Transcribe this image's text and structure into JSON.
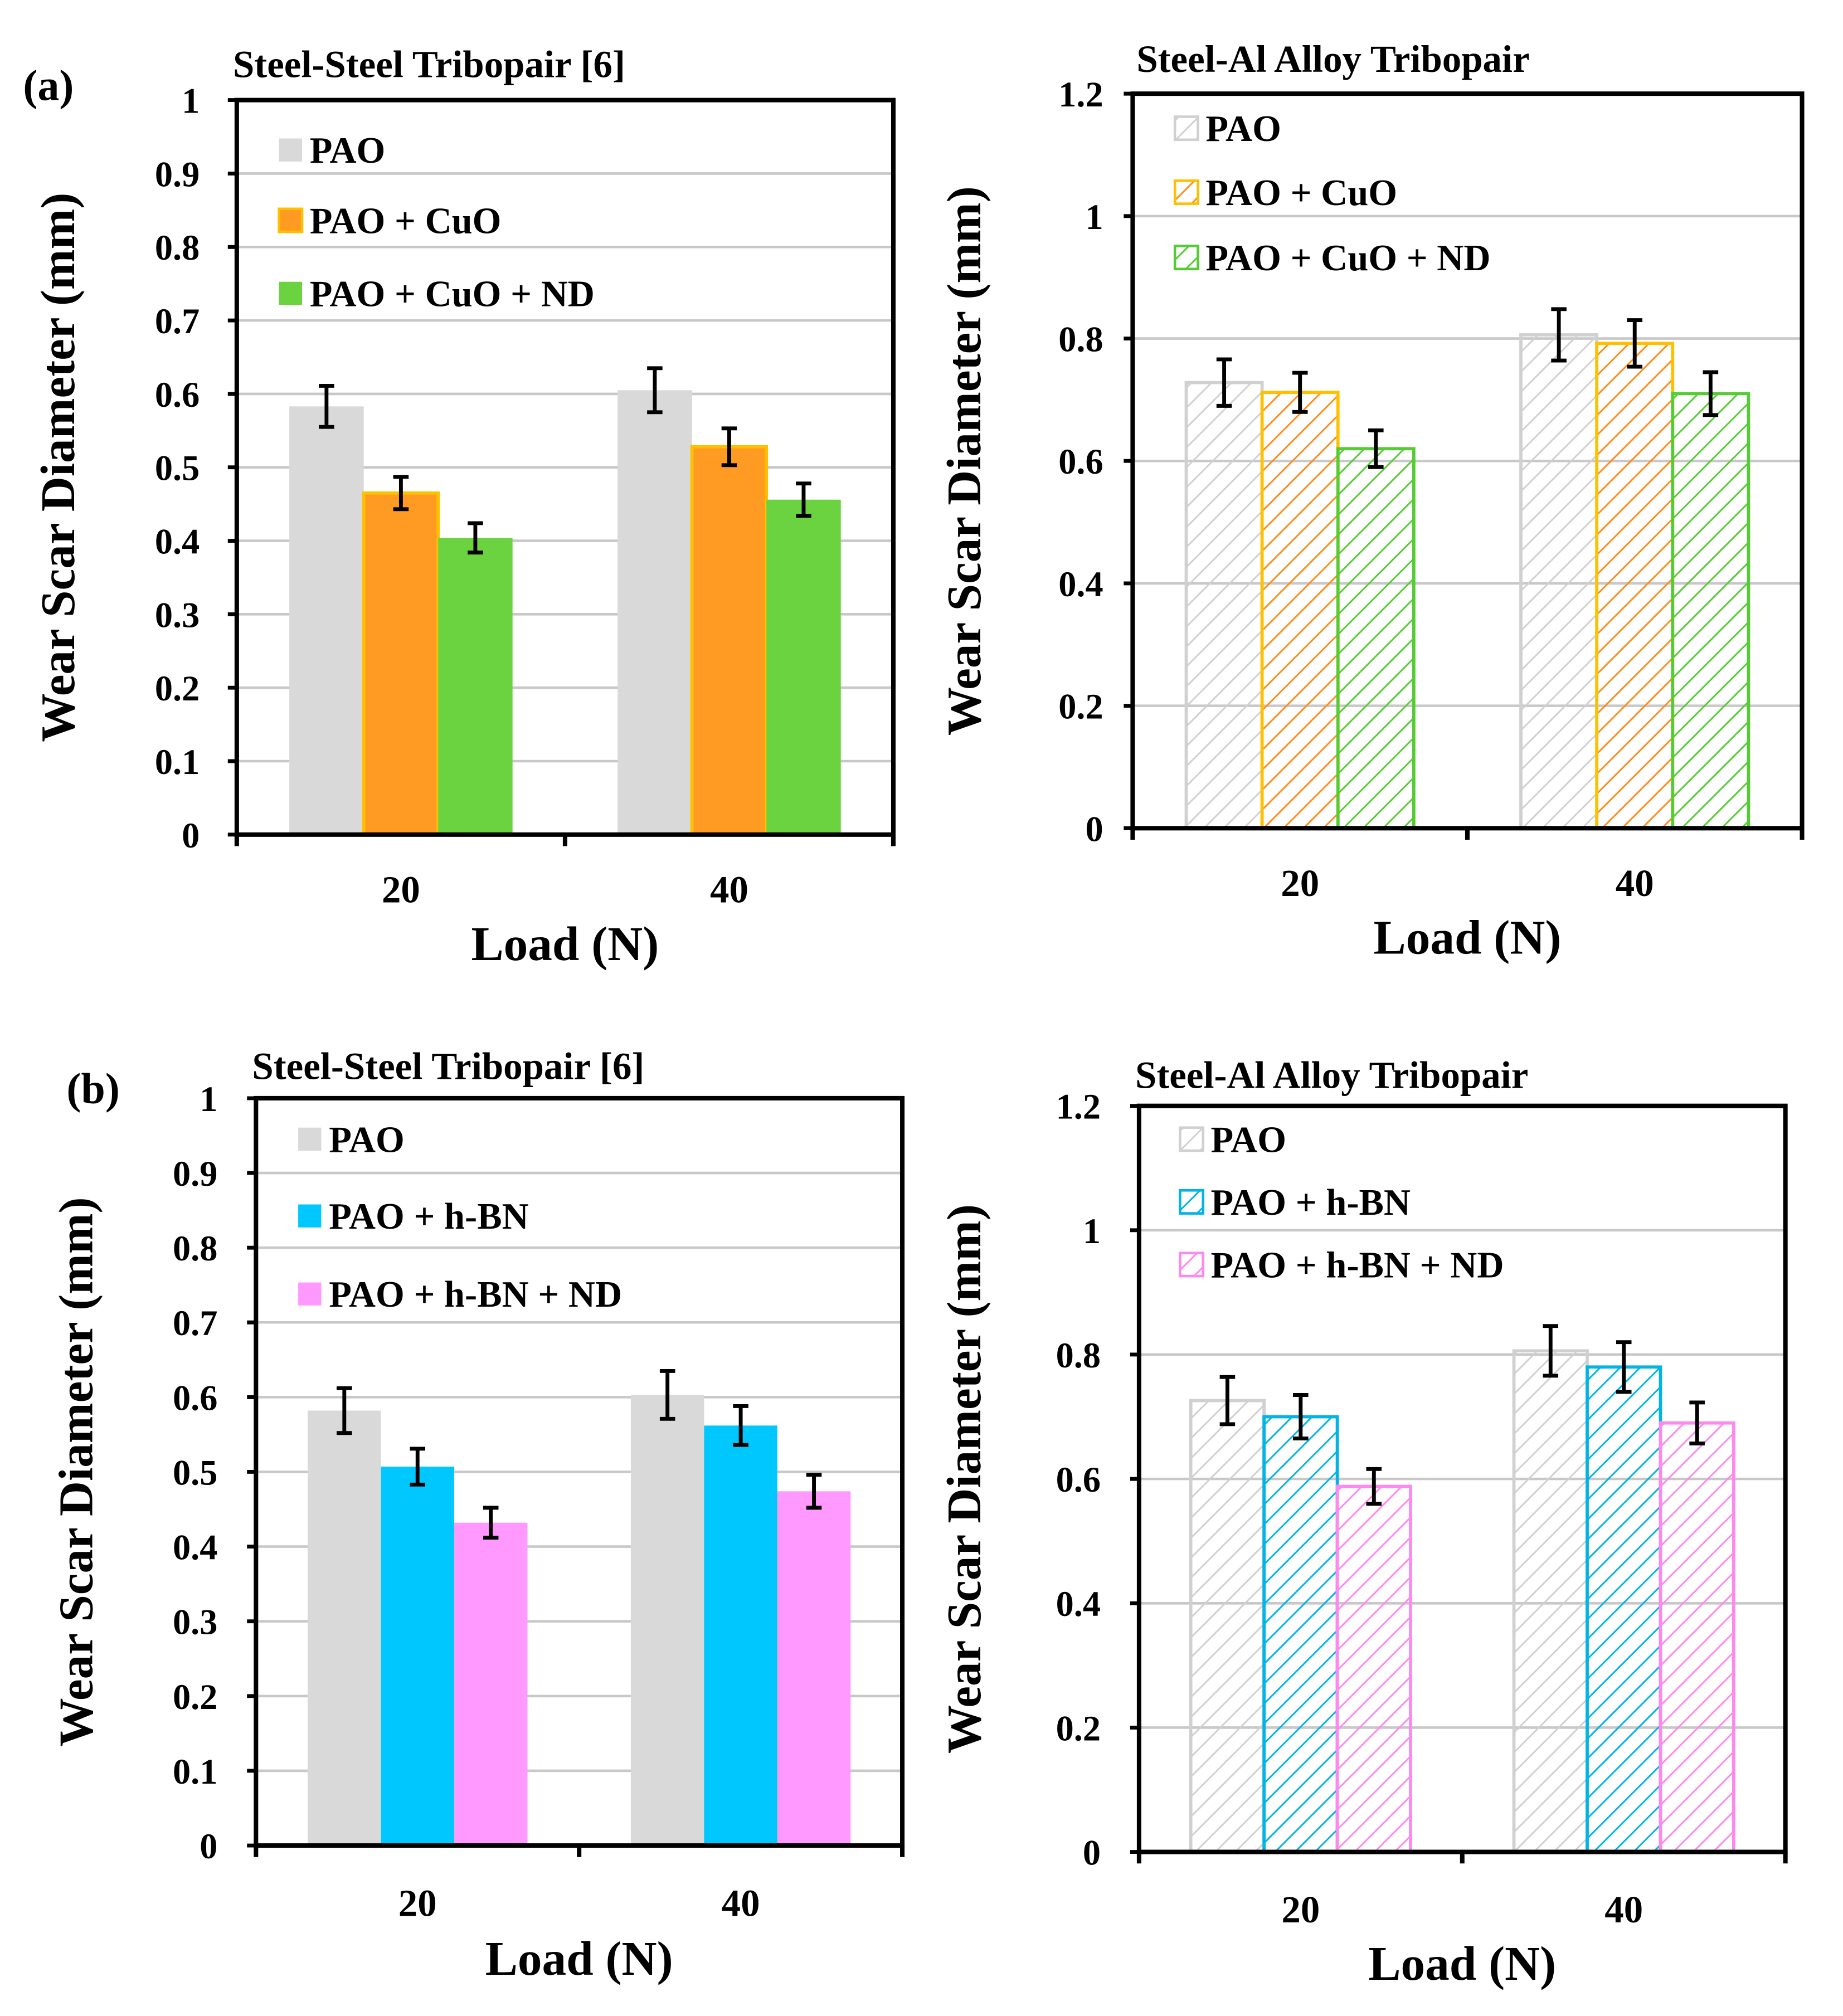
{
  "panel_labels": [
    "(a)",
    "(b)"
  ],
  "chart_data": [
    {
      "type": "bar",
      "panel": "(a)",
      "title": "Steel-Steel Tribopair [6]",
      "xlabel": "Load (N)",
      "ylabel": "Wear Scar Diameter (mm)",
      "categories": [
        "20",
        "40"
      ],
      "ylim": [
        0,
        1
      ],
      "yticks": [
        "0",
        "0.1",
        "0.2",
        "0.3",
        "0.4",
        "0.5",
        "0.6",
        "0.7",
        "0.8",
        "0.9",
        "1"
      ],
      "ytick_values": [
        0,
        0.1,
        0.2,
        0.3,
        0.4,
        0.5,
        0.6,
        0.7,
        0.8,
        0.9,
        1
      ],
      "grid": true,
      "legend_position": "top-left",
      "hatched": false,
      "series": [
        {
          "name": "PAO",
          "values": [
            0.583,
            0.605
          ],
          "errors": [
            0.028,
            0.03
          ],
          "color": "#d9d9d9"
        },
        {
          "name": "PAO + CuO",
          "values": [
            0.465,
            0.528
          ],
          "errors": [
            0.022,
            0.025
          ],
          "color": "#ff9a22",
          "edge": "#ffc000"
        },
        {
          "name": "PAO + CuO + ND",
          "values": [
            0.404,
            0.456
          ],
          "errors": [
            0.02,
            0.022
          ],
          "color": "#6cd340"
        }
      ]
    },
    {
      "type": "bar",
      "panel": "(a)",
      "title": "Steel-Al Alloy Tribopair",
      "xlabel": "Load (N)",
      "ylabel": "Wear Scar Diameter (mm)",
      "categories": [
        "20",
        "40"
      ],
      "ylim": [
        0,
        1.2
      ],
      "yticks": [
        "0",
        "0.2",
        "0.4",
        "0.6",
        "0.8",
        "1",
        "1.2"
      ],
      "ytick_values": [
        0,
        0.2,
        0.4,
        0.6,
        0.8,
        1,
        1.2
      ],
      "grid": true,
      "legend_position": "top-left",
      "hatched": true,
      "series": [
        {
          "name": "PAO",
          "values": [
            0.728,
            0.806
          ],
          "errors": [
            0.038,
            0.042
          ],
          "color": "#d0d0d0"
        },
        {
          "name": "PAO + CuO",
          "values": [
            0.712,
            0.792
          ],
          "errors": [
            0.032,
            0.038
          ],
          "color": "#ff8c1a",
          "edge": "#ffc000"
        },
        {
          "name": "PAO + CuO + ND",
          "values": [
            0.62,
            0.71
          ],
          "errors": [
            0.03,
            0.035
          ],
          "color": "#55cc33"
        }
      ]
    },
    {
      "type": "bar",
      "panel": "(b)",
      "title": "Steel-Steel Tribopair [6]",
      "xlabel": "Load (N)",
      "ylabel": "Wear Scar Diameter (mm)",
      "categories": [
        "20",
        "40"
      ],
      "ylim": [
        0,
        1
      ],
      "yticks": [
        "0",
        "0.1",
        "0.2",
        "0.3",
        "0.4",
        "0.5",
        "0.6",
        "0.7",
        "0.8",
        "0.9",
        "1"
      ],
      "ytick_values": [
        0,
        0.1,
        0.2,
        0.3,
        0.4,
        0.5,
        0.6,
        0.7,
        0.8,
        0.9,
        1
      ],
      "grid": true,
      "legend_position": "top-left",
      "hatched": false,
      "series": [
        {
          "name": "PAO",
          "values": [
            0.582,
            0.603
          ],
          "errors": [
            0.03,
            0.032
          ],
          "color": "#d9d9d9"
        },
        {
          "name": "PAO + h-BN",
          "values": [
            0.507,
            0.562
          ],
          "errors": [
            0.024,
            0.026
          ],
          "color": "#00c8ff"
        },
        {
          "name": "PAO + h-BN + ND",
          "values": [
            0.432,
            0.474
          ],
          "errors": [
            0.02,
            0.022
          ],
          "color": "#ff99ff"
        }
      ]
    },
    {
      "type": "bar",
      "panel": "(b)",
      "title": "Steel-Al Alloy Tribopair",
      "xlabel": "Load (N)",
      "ylabel": "Wear Scar Diameter (mm)",
      "categories": [
        "20",
        "40"
      ],
      "ylim": [
        0,
        1.2
      ],
      "yticks": [
        "0",
        "0.2",
        "0.4",
        "0.6",
        "0.8",
        "1",
        "1.2"
      ],
      "ytick_values": [
        0,
        0.2,
        0.4,
        0.6,
        0.8,
        1,
        1.2
      ],
      "grid": true,
      "legend_position": "top-left",
      "hatched": true,
      "series": [
        {
          "name": "PAO",
          "values": [
            0.726,
            0.806
          ],
          "errors": [
            0.038,
            0.04
          ],
          "color": "#d0d0d0"
        },
        {
          "name": "PAO + h-BN",
          "values": [
            0.7,
            0.78
          ],
          "errors": [
            0.035,
            0.04
          ],
          "color": "#00b4e6"
        },
        {
          "name": "PAO + h-BN + ND",
          "values": [
            0.588,
            0.69
          ],
          "errors": [
            0.028,
            0.033
          ],
          "color": "#ff88ee"
        }
      ]
    }
  ]
}
